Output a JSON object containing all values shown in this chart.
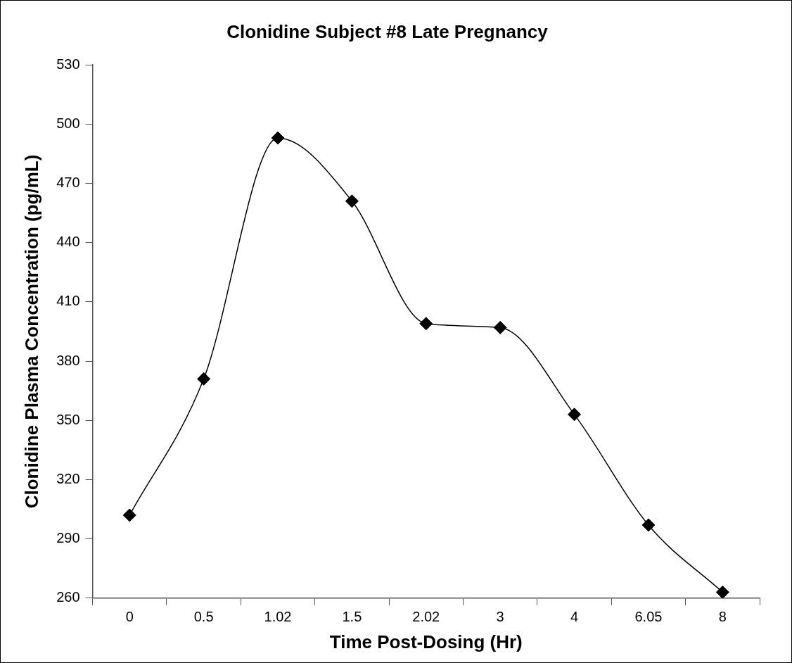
{
  "chart_data": {
    "type": "line",
    "title": "Clonidine Subject #8 Late Pregnancy",
    "xlabel": "Time Post-Dosing (Hr)",
    "ylabel": "Clonidine Plasma Concentration (pg/mL)",
    "categories": [
      "0",
      "0.5",
      "1.02",
      "1.5",
      "2.02",
      "3",
      "4",
      "6.05",
      "8"
    ],
    "series": [
      {
        "color": "#000000",
        "values": [
          302,
          371,
          493,
          461,
          399,
          397,
          353,
          297,
          263
        ]
      }
    ],
    "ylim": [
      260,
      530
    ],
    "yticks": [
      260,
      290,
      320,
      350,
      380,
      410,
      440,
      470,
      500,
      530
    ],
    "grid": false,
    "legend": false,
    "marker": "diamond",
    "line_style": "solid"
  }
}
